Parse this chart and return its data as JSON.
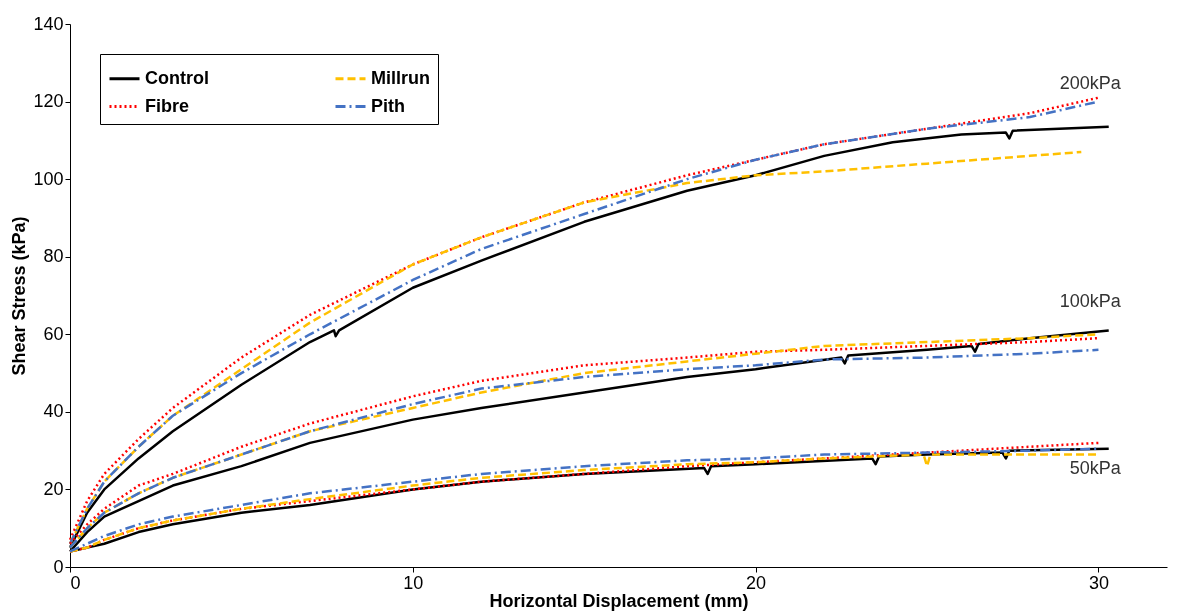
{
  "chart_data": {
    "type": "line",
    "xlabel": "Horizontal Displacement (mm)",
    "ylabel": "Shear Stress (kPa)",
    "xlim": [
      0,
      32
    ],
    "xticks": [
      0,
      10,
      20,
      30
    ],
    "ylim": [
      0,
      140
    ],
    "yticks": [
      0,
      20,
      40,
      60,
      80,
      100,
      120,
      140
    ],
    "grid": false,
    "legend": "top left",
    "marker": "none",
    "annotations": [
      "200kPa",
      "100kPa",
      "50kPa"
    ],
    "series": [
      {
        "name": "Control",
        "color": "#000000",
        "line_style": "solid",
        "x": [
          0,
          0.5,
          1,
          2,
          3,
          5,
          7,
          7.7,
          7.75,
          7.85,
          10,
          12,
          15,
          18,
          20,
          22,
          24,
          26,
          27.3,
          27.4,
          27.5,
          30.3
        ],
        "values": [
          5,
          14,
          20,
          28,
          35,
          47,
          58,
          61,
          59.5,
          61,
          72,
          79,
          89,
          97,
          101,
          106,
          109.5,
          111.5,
          112,
          110.5,
          112.5,
          113.5
        ]
      },
      {
        "name": "Fibre",
        "color": "#ff0000",
        "line_style": "dotted",
        "x": [
          0,
          0.5,
          1,
          2,
          3,
          5,
          7,
          10,
          12,
          15,
          18,
          20,
          22,
          25,
          28,
          30
        ],
        "values": [
          7,
          17,
          24,
          33,
          41,
          54,
          65,
          78,
          85,
          94,
          101,
          105,
          109,
          113,
          117,
          121
        ]
      },
      {
        "name": "Millrun",
        "color": "#ffc000",
        "line_style": "dashed",
        "x": [
          0,
          0.5,
          1,
          2,
          3,
          5,
          7,
          10,
          12,
          15,
          18,
          20,
          22,
          25,
          28,
          29.5
        ],
        "values": [
          6,
          15,
          22,
          31,
          39,
          51,
          63,
          78,
          85,
          94,
          99,
          101,
          102,
          104,
          106,
          107
        ]
      },
      {
        "name": "Pith",
        "color": "#4472c4",
        "line_style": "dashdot",
        "x": [
          0,
          0.5,
          1,
          2,
          3,
          5,
          7,
          10,
          12,
          15,
          18,
          20,
          22,
          25,
          28,
          30
        ],
        "values": [
          6,
          15,
          22,
          31,
          39,
          50,
          60,
          74,
          82,
          91,
          100,
          105,
          109,
          113,
          116,
          120
        ]
      },
      {
        "color": "#000000",
        "line_style": "solid",
        "x": [
          0,
          0.5,
          1,
          2,
          3,
          5,
          7,
          10,
          12,
          15,
          18,
          20,
          22.5,
          22.6,
          22.7,
          25,
          26.3,
          26.4,
          26.5,
          28,
          30.3
        ],
        "values": [
          4,
          9,
          13,
          17,
          21,
          26,
          32,
          38,
          41,
          45,
          49,
          51,
          54,
          52.5,
          54.5,
          56,
          57,
          55.5,
          57.5,
          59,
          61
        ]
      },
      {
        "color": "#ff0000",
        "line_style": "dotted",
        "x": [
          0,
          0.5,
          1,
          2,
          3,
          5,
          7,
          10,
          12,
          15,
          18,
          20,
          22,
          25,
          28,
          30
        ],
        "values": [
          6,
          11,
          15,
          21,
          24,
          31,
          37,
          44,
          48,
          52,
          54,
          55.5,
          56,
          57,
          58,
          59
        ]
      },
      {
        "color": "#ffc000",
        "line_style": "dashed",
        "x": [
          0,
          0.5,
          1,
          2,
          3,
          5,
          7,
          10,
          12,
          15,
          18,
          20,
          22,
          25,
          28,
          30
        ],
        "values": [
          5,
          10,
          14,
          19,
          23,
          29,
          35,
          41,
          45,
          50,
          53,
          55,
          57,
          58,
          59,
          60
        ]
      },
      {
        "color": "#4472c4",
        "line_style": "dashdot",
        "x": [
          0,
          0.5,
          1,
          2,
          3,
          5,
          7,
          10,
          12,
          15,
          18,
          20,
          22,
          25,
          28,
          30
        ],
        "values": [
          5,
          10,
          14,
          19,
          23,
          29,
          35,
          42,
          46,
          49,
          51,
          52,
          53.5,
          54,
          55,
          56
        ]
      },
      {
        "color": "#000000",
        "line_style": "solid",
        "x": [
          0,
          0.5,
          1,
          2,
          3,
          5,
          7,
          10,
          12,
          15,
          18.5,
          18.6,
          18.7,
          20,
          23.4,
          23.5,
          23.6,
          25,
          27.2,
          27.3,
          27.4,
          30.3
        ],
        "values": [
          4,
          5,
          6,
          9,
          11,
          14,
          16,
          20,
          22,
          24,
          25.5,
          24,
          26,
          26.5,
          28,
          26.5,
          28.5,
          29,
          29.5,
          28,
          30,
          30.5
        ]
      },
      {
        "color": "#ff0000",
        "line_style": "dotted",
        "x": [
          0,
          0.5,
          1,
          2,
          3,
          5,
          7,
          10,
          12,
          15,
          18,
          20,
          22,
          25,
          28,
          30
        ],
        "values": [
          4,
          5,
          7,
          10,
          12,
          15,
          17,
          20,
          22,
          24,
          26,
          27,
          28,
          29.5,
          31,
          32
        ]
      },
      {
        "color": "#ffc000",
        "line_style": "dashed",
        "x": [
          0,
          0.5,
          1,
          2,
          3,
          5,
          7,
          10,
          12,
          15,
          18,
          20,
          22,
          24.9,
          25,
          25.1,
          28,
          30
        ],
        "values": [
          4,
          5,
          7,
          10,
          12,
          15,
          17.5,
          21,
          23,
          25,
          26.5,
          27,
          28,
          29,
          26,
          29,
          29,
          29
        ]
      },
      {
        "color": "#4472c4",
        "line_style": "dashdot",
        "x": [
          0,
          0.5,
          1,
          2,
          3,
          5,
          7,
          10,
          12,
          15,
          18,
          20,
          22,
          25,
          28,
          30
        ],
        "values": [
          4,
          6,
          8,
          11,
          13,
          16,
          19,
          22,
          24,
          26,
          27.5,
          28,
          29,
          29.5,
          30,
          30.5
        ]
      }
    ]
  }
}
